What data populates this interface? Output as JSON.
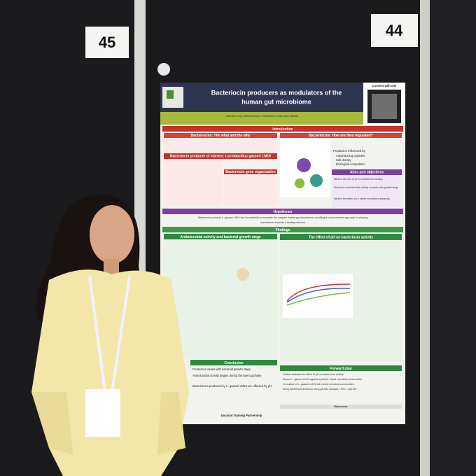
{
  "board_numbers": [
    "45",
    "44"
  ],
  "poster": {
    "title": [
      "Bacteriocin producers as modulators of the",
      "human gut microbiome"
    ],
    "connect": "Connect with me!",
    "authors": "Stephanie Ong, Melinda Mayer, Gwenaelle Le Gall, Arjan Narbad",
    "introduction": {
      "heading": "Introduction",
      "what_why": "Bacteriocins: The what and the why",
      "regulation": "Bacteriocins: How are they regulated?",
      "producer": "Bacteriocin producer of interest: Lactobacillus gasseri LM19",
      "gene_organisation": "Bacteriocin gene organisation"
    },
    "regulation_points": [
      "Production influenced by",
      "Autoinducing peptides",
      "Cell density",
      "Ecological competition"
    ],
    "aims": {
      "heading": "Aims and objectives",
      "items": [
        "What is the role of pH on bacteriocin activity",
        "How does antimicrobial activity coincide with growth stage",
        "What is the effect on a mixed microbial community"
      ]
    },
    "hypothesis": {
      "heading": "Hypothesis",
      "text": [
        "Bacteriocin producer L. gasseri LM19 has the potential to modulate the complex human gut microbiome, providing a novel probiotic approach to shaping",
        "microbiomes towards a healthy outcome"
      ]
    },
    "findings": {
      "heading": "Findings",
      "growth_stage": "Antimicrobial activity and bacterial growth stage",
      "ph_effect": "The effect of pH on bacteriocin activity"
    },
    "conclusion": {
      "heading": "Conclusion",
      "items": [
        "Production varies with bacterial growth stage",
        "Antimicrobial activity begins during the late log phase",
        "Bacteriocins produced by L. gasseri LM19 are affected by pH"
      ]
    },
    "forward_plan": {
      "heading": "Forward plan",
      "items": [
        "Further evaluate the effect of pH on bacteriocin activity",
        "Screen L. gasseri LM19 against synthetic mixed microbial communities",
        "Co-culture of L. gasseri LM19 with mixed microbial communities",
        "Study bacteriocin induction using genetic analysis, HPLC, and MS"
      ]
    },
    "references": "References",
    "partnership": "Doctoral Training Partnership"
  }
}
